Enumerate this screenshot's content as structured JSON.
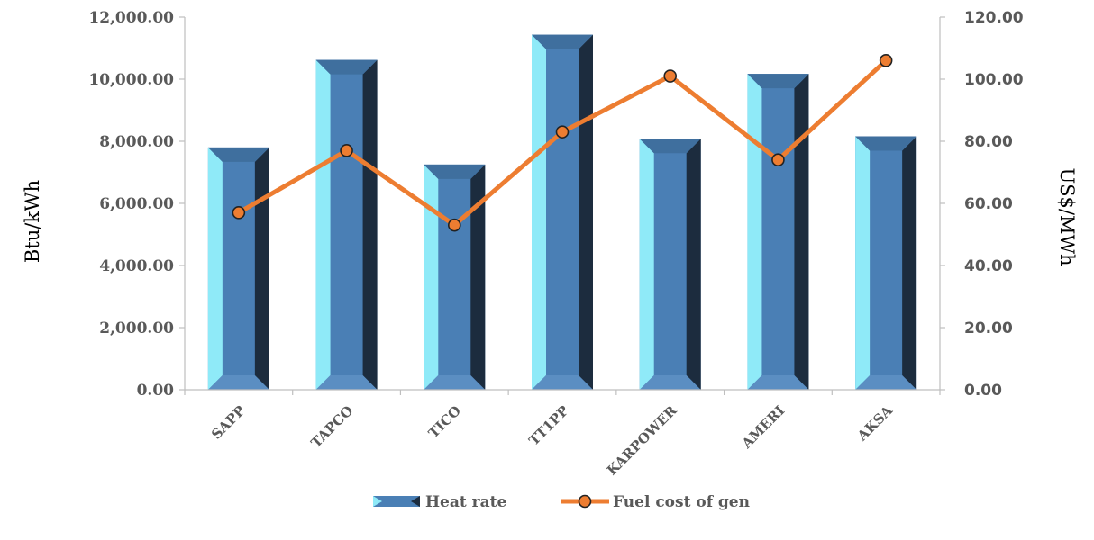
{
  "chart_data": {
    "type": "bar",
    "categories": [
      "SAPP",
      "TAPCO",
      "TICO",
      "TT1PP",
      "KARPOWER",
      "AMERI",
      "AKSA"
    ],
    "series": [
      {
        "name": "Heat rate",
        "type": "bar",
        "axis": "left",
        "values": [
          7800,
          10620,
          7250,
          11430,
          8080,
          10170,
          8160
        ]
      },
      {
        "name": "Fuel cost of gen",
        "type": "line",
        "axis": "right",
        "values": [
          57,
          77,
          53,
          83,
          101,
          74,
          106
        ]
      }
    ],
    "ylabel": "Btu/kWh",
    "y2label": "US$/MWh",
    "ylim": [
      0,
      12000
    ],
    "y2lim": [
      0,
      120
    ],
    "yticks": [
      "0.00",
      "2,000.00",
      "4,000.00",
      "6,000.00",
      "8,000.00",
      "10,000.00",
      "12,000.00"
    ],
    "y2ticks": [
      "0.00",
      "20.00",
      "40.00",
      "60.00",
      "80.00",
      "100.00",
      "120.00"
    ],
    "grid": false,
    "legend_position": "bottom",
    "colors": {
      "bar_front": "#4a7fb5",
      "bar_left_bevel": "#8feaf8",
      "bar_right_bevel": "#1c2c3e",
      "line": "#ed7d31",
      "marker_edge": "#222222"
    }
  }
}
